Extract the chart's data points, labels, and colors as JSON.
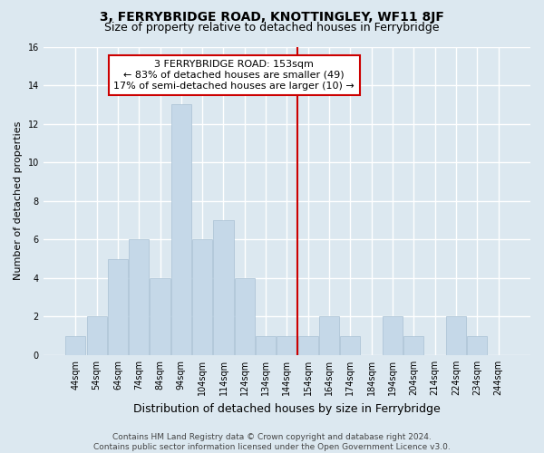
{
  "title": "3, FERRYBRIDGE ROAD, KNOTTINGLEY, WF11 8JF",
  "subtitle": "Size of property relative to detached houses in Ferrybridge",
  "xlabel": "Distribution of detached houses by size in Ferrybridge",
  "ylabel": "Number of detached properties",
  "categories": [
    "44sqm",
    "54sqm",
    "64sqm",
    "74sqm",
    "84sqm",
    "94sqm",
    "104sqm",
    "114sqm",
    "124sqm",
    "134sqm",
    "144sqm",
    "154sqm",
    "164sqm",
    "174sqm",
    "184sqm",
    "194sqm",
    "204sqm",
    "214sqm",
    "224sqm",
    "234sqm",
    "244sqm"
  ],
  "values": [
    1,
    2,
    5,
    6,
    4,
    13,
    6,
    7,
    4,
    1,
    1,
    1,
    2,
    1,
    0,
    2,
    1,
    0,
    2,
    1,
    0
  ],
  "bar_color": "#c5d8e8",
  "bar_edgecolor": "#a8c0d4",
  "background_color": "#dce8f0",
  "grid_color": "#ffffff",
  "vline_color": "#cc0000",
  "vline_index": 10.5,
  "annotation_text": "3 FERRYBRIDGE ROAD: 153sqm\n← 83% of detached houses are smaller (49)\n17% of semi-detached houses are larger (10) →",
  "annotation_box_facecolor": "#ffffff",
  "annotation_box_edgecolor": "#cc0000",
  "ylim": [
    0,
    16
  ],
  "yticks": [
    0,
    2,
    4,
    6,
    8,
    10,
    12,
    14,
    16
  ],
  "footer_text": "Contains HM Land Registry data © Crown copyright and database right 2024.\nContains public sector information licensed under the Open Government Licence v3.0.",
  "title_fontsize": 10,
  "subtitle_fontsize": 9,
  "axis_label_fontsize": 8,
  "tick_fontsize": 7,
  "annotation_fontsize": 8,
  "footer_fontsize": 6.5
}
